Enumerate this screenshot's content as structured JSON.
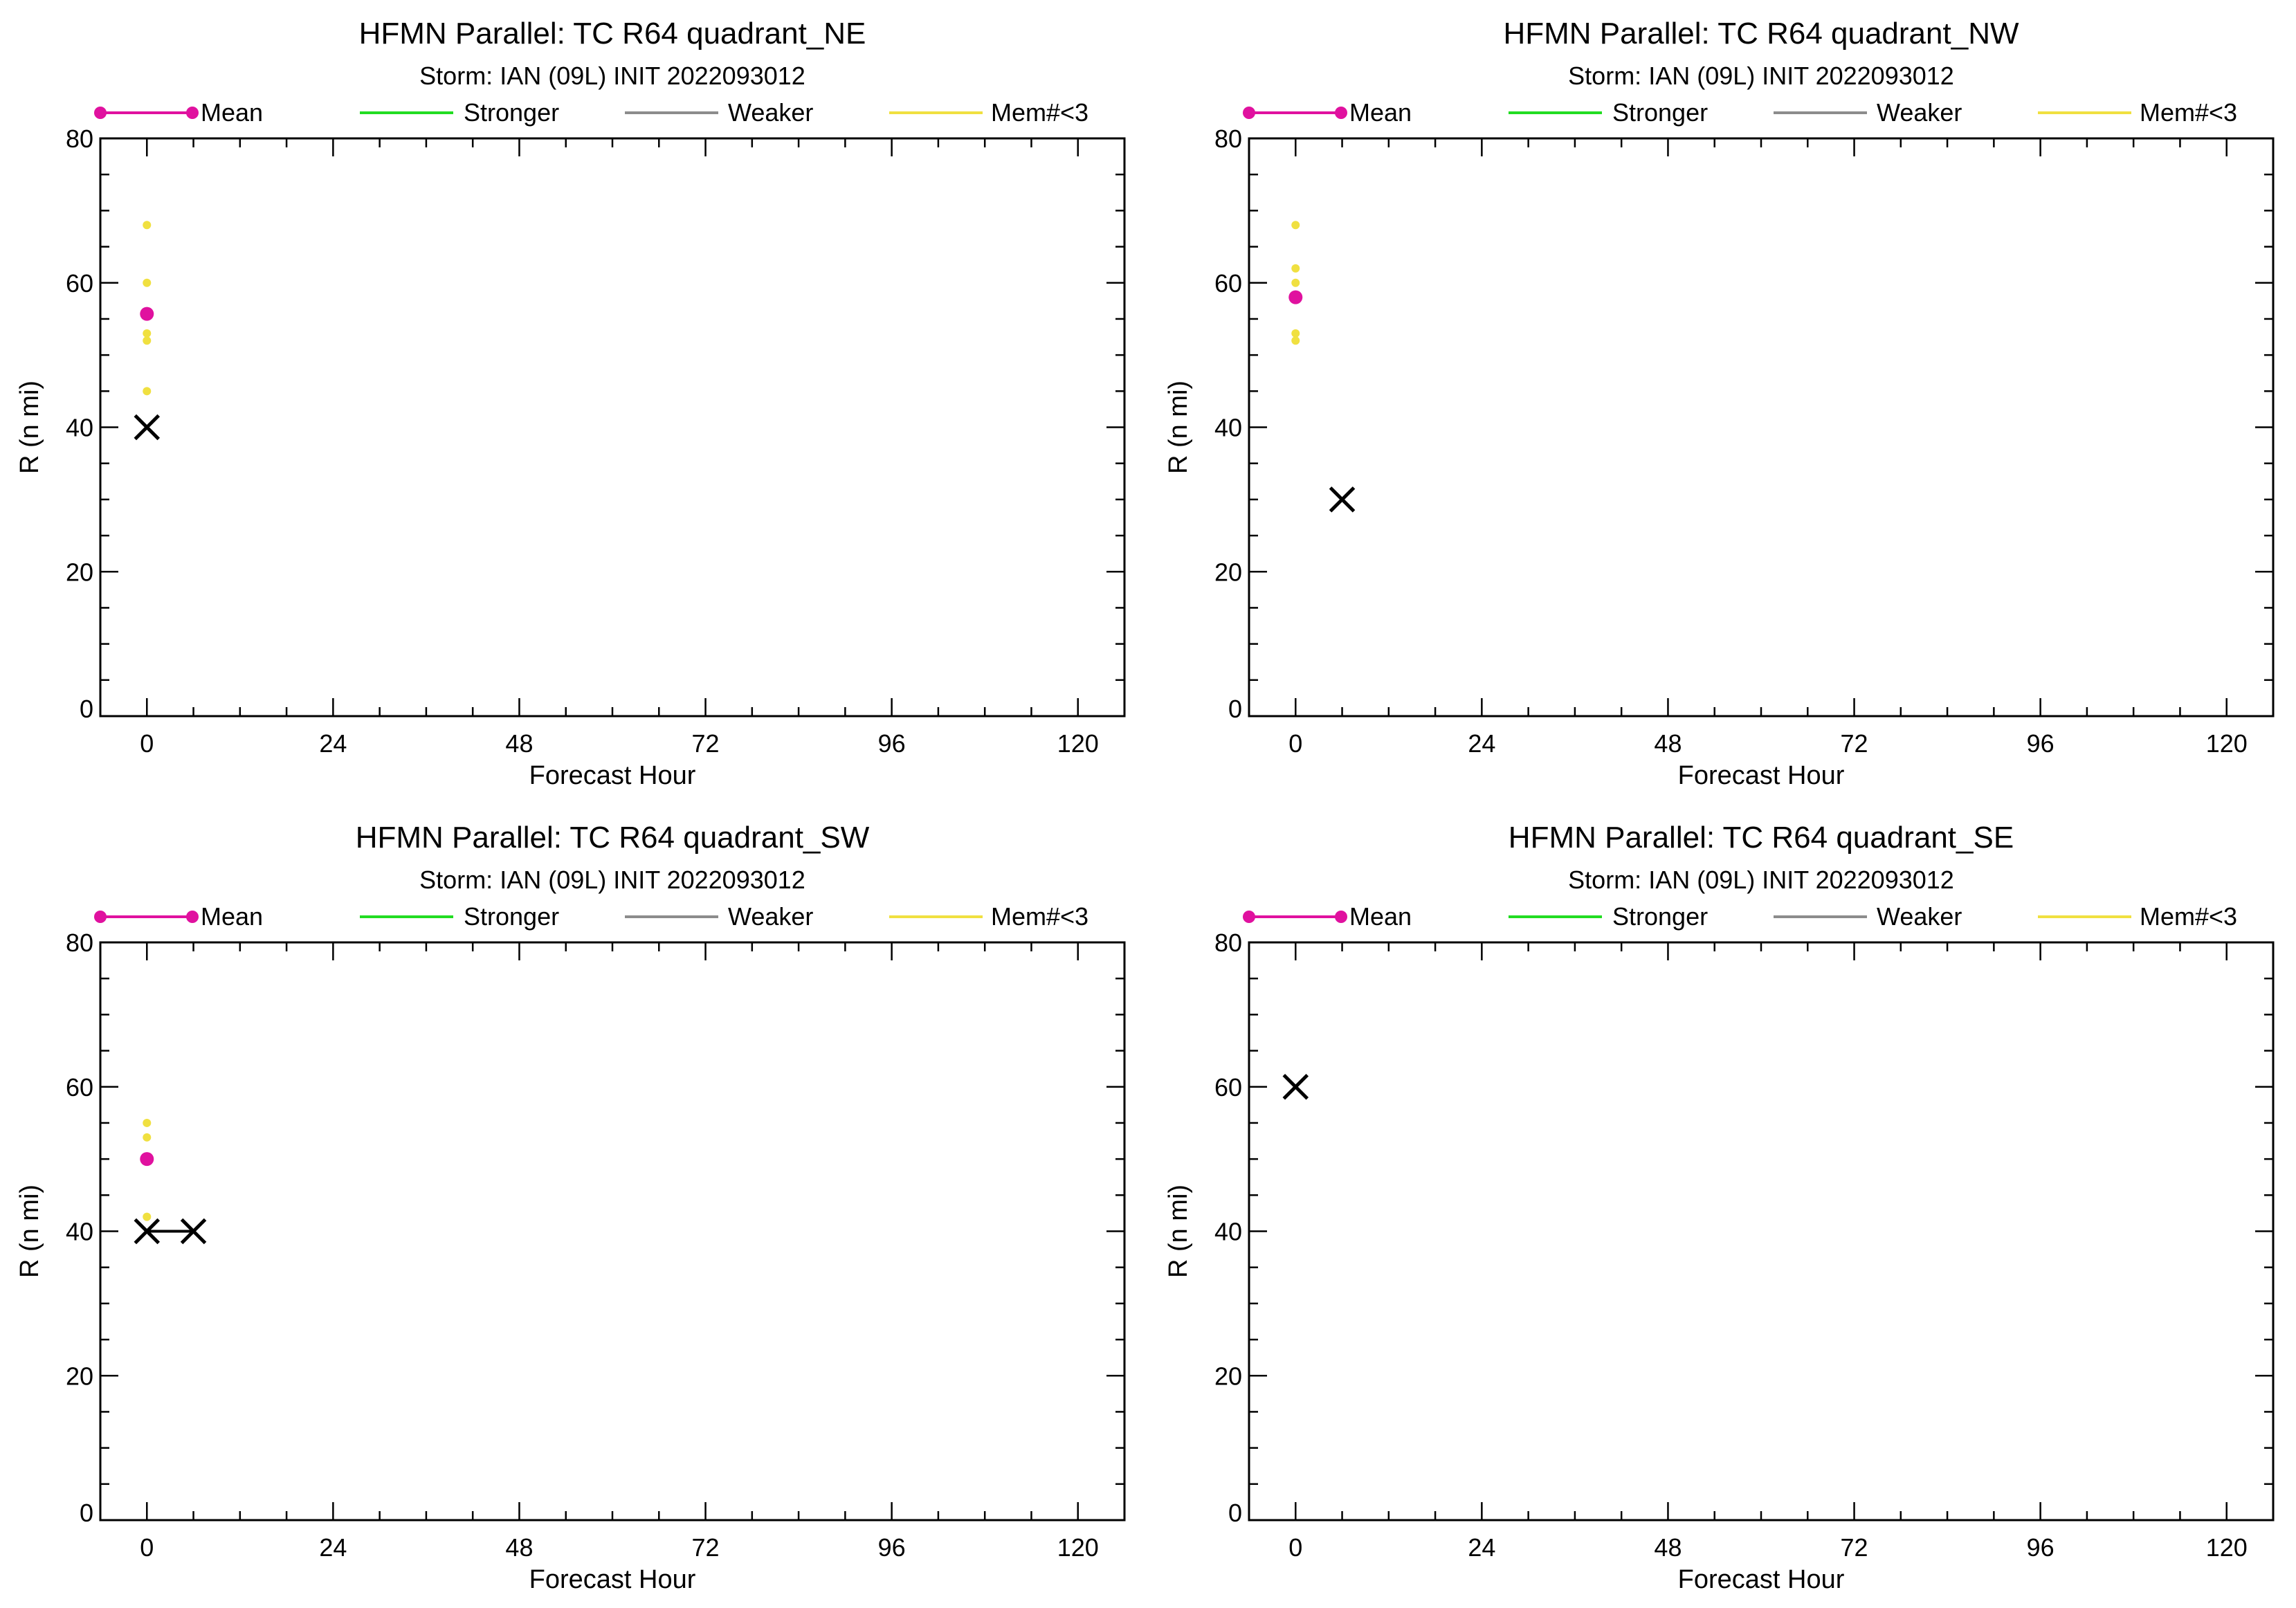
{
  "legend_labels": {
    "mean": "Mean",
    "stronger": "Stronger",
    "weaker": "Weaker",
    "members": "Mem#<3"
  },
  "colors": {
    "mean": "#e0119f",
    "stronger": "#22dd22",
    "weaker": "#8c8c8c",
    "members": "#f0e040",
    "observed": "#000000"
  },
  "chart_data": [
    {
      "type": "scatter",
      "title": "HFMN Parallel: TC  R64 quadrant_NE",
      "subtitle": "Storm: IAN (09L) INIT 2022093012",
      "xlabel": "Forecast Hour",
      "ylabel": "R (n mi)",
      "xlim": [
        -6,
        126
      ],
      "ylim": [
        0,
        80
      ],
      "xticks": [
        0,
        24,
        48,
        72,
        96,
        120
      ],
      "yticks": [
        0,
        20,
        40,
        60,
        80
      ],
      "legend_position": "top",
      "series": [
        {
          "name": "Mean",
          "type": "line",
          "points": [
            [
              0,
              55.7
            ]
          ]
        },
        {
          "name": "Stronger",
          "type": "line",
          "points": []
        },
        {
          "name": "Weaker",
          "type": "line",
          "points": []
        },
        {
          "name": "Mem#<3",
          "type": "scatter",
          "points": [
            [
              0,
              68
            ],
            [
              0,
              60
            ],
            [
              0,
              53
            ],
            [
              0,
              52
            ],
            [
              0,
              45
            ]
          ]
        },
        {
          "type": "cross",
          "points": [
            [
              0,
              40
            ]
          ]
        }
      ]
    },
    {
      "type": "scatter",
      "title": "HFMN Parallel: TC  R64 quadrant_NW",
      "subtitle": "Storm: IAN (09L) INIT 2022093012",
      "xlabel": "Forecast Hour",
      "ylabel": "R (n mi)",
      "xlim": [
        -6,
        126
      ],
      "ylim": [
        0,
        80
      ],
      "xticks": [
        0,
        24,
        48,
        72,
        96,
        120
      ],
      "yticks": [
        0,
        20,
        40,
        60,
        80
      ],
      "legend_position": "top",
      "series": [
        {
          "name": "Mean",
          "type": "line",
          "points": [
            [
              0,
              58
            ]
          ]
        },
        {
          "name": "Stronger",
          "type": "line",
          "points": []
        },
        {
          "name": "Weaker",
          "type": "line",
          "points": []
        },
        {
          "name": "Mem#<3",
          "type": "scatter",
          "points": [
            [
              0,
              68
            ],
            [
              0,
              62
            ],
            [
              0,
              60
            ],
            [
              0,
              53
            ],
            [
              0,
              52
            ]
          ]
        },
        {
          "type": "cross",
          "points": [
            [
              6,
              30
            ]
          ]
        }
      ]
    },
    {
      "type": "scatter",
      "title": "HFMN Parallel: TC  R64 quadrant_SW",
      "subtitle": "Storm: IAN (09L) INIT 2022093012",
      "xlabel": "Forecast Hour",
      "ylabel": "R (n mi)",
      "xlim": [
        -6,
        126
      ],
      "ylim": [
        0,
        80
      ],
      "xticks": [
        0,
        24,
        48,
        72,
        96,
        120
      ],
      "yticks": [
        0,
        20,
        40,
        60,
        80
      ],
      "legend_position": "top",
      "series": [
        {
          "name": "Mean",
          "type": "line",
          "points": [
            [
              0,
              50
            ]
          ]
        },
        {
          "name": "Stronger",
          "type": "line",
          "points": []
        },
        {
          "name": "Weaker",
          "type": "line",
          "points": []
        },
        {
          "name": "Mem#<3",
          "type": "scatter",
          "points": [
            [
              0,
              55
            ],
            [
              0,
              53
            ],
            [
              0,
              42
            ]
          ]
        },
        {
          "type": "cross",
          "points": [
            [
              0,
              40
            ],
            [
              6,
              40
            ]
          ]
        }
      ]
    },
    {
      "type": "scatter",
      "title": "HFMN Parallel: TC  R64 quadrant_SE",
      "subtitle": "Storm: IAN (09L) INIT 2022093012",
      "xlabel": "Forecast Hour",
      "ylabel": "R (n mi)",
      "xlim": [
        -6,
        126
      ],
      "ylim": [
        0,
        80
      ],
      "xticks": [
        0,
        24,
        48,
        72,
        96,
        120
      ],
      "yticks": [
        0,
        20,
        40,
        60,
        80
      ],
      "legend_position": "top",
      "series": [
        {
          "name": "Mean",
          "type": "line",
          "points": []
        },
        {
          "name": "Stronger",
          "type": "line",
          "points": []
        },
        {
          "name": "Weaker",
          "type": "line",
          "points": []
        },
        {
          "name": "Mem#<3",
          "type": "scatter",
          "points": []
        },
        {
          "type": "cross",
          "points": [
            [
              0,
              60
            ]
          ]
        }
      ]
    }
  ]
}
